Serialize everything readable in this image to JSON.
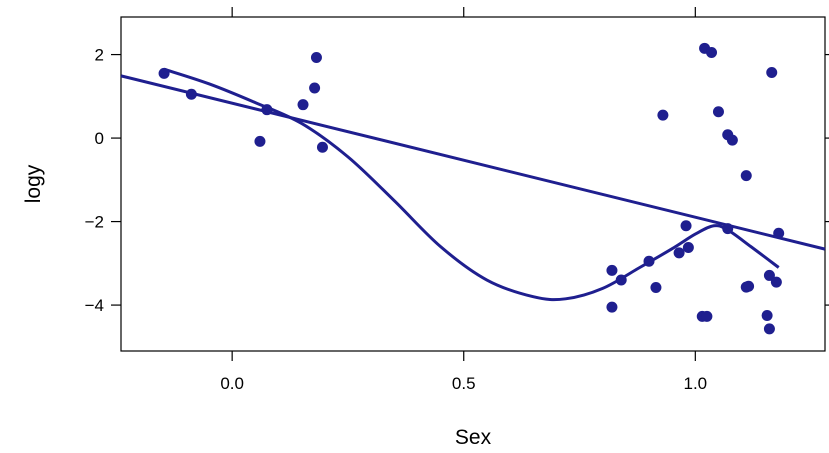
{
  "chart_data": {
    "type": "scatter",
    "title": "",
    "xlabel": "Sex",
    "ylabel": "logy",
    "xlim": [
      -0.24,
      1.28
    ],
    "ylim": [
      -5.1,
      2.9
    ],
    "x_ticks": [
      0.0,
      0.5,
      1.0
    ],
    "x_tick_labels": [
      "0.0",
      "0.5",
      "1.0"
    ],
    "y_ticks": [
      -4,
      -2,
      0,
      2
    ],
    "y_tick_labels": [
      "−4",
      "−2",
      "0",
      "2"
    ],
    "grid": false,
    "color": "#1f1f8f",
    "points": {
      "x": [
        -0.147,
        -0.088,
        0.06,
        0.075,
        0.153,
        0.178,
        0.182,
        0.195,
        0.82,
        0.82,
        0.84,
        0.9,
        0.915,
        0.93,
        0.965,
        0.98,
        0.985,
        1.015,
        1.02,
        1.025,
        1.035,
        1.05,
        1.07,
        1.07,
        1.08,
        1.11,
        1.11,
        1.115,
        1.155,
        1.16,
        1.16,
        1.165,
        1.175,
        1.18
      ],
      "y": [
        1.55,
        1.05,
        -0.08,
        0.68,
        0.8,
        1.2,
        1.93,
        -0.22,
        -3.17,
        -4.05,
        -3.4,
        -2.95,
        -3.58,
        0.55,
        -2.75,
        -2.1,
        -2.62,
        -4.27,
        2.15,
        -4.27,
        2.05,
        0.63,
        -2.17,
        0.08,
        -0.05,
        -0.9,
        -3.57,
        -3.55,
        -4.25,
        -3.29,
        -4.57,
        1.57,
        -3.45,
        -2.28
      ]
    },
    "regression_line": {
      "x": [
        -0.24,
        1.28
      ],
      "y": [
        1.49,
        -2.66
      ]
    },
    "smooth_curve": {
      "x": [
        -0.147,
        -0.05,
        0.05,
        0.15,
        0.25,
        0.35,
        0.45,
        0.55,
        0.65,
        0.72,
        0.8,
        0.88,
        0.95,
        1.0,
        1.04,
        1.07,
        1.12,
        1.18
      ],
      "y": [
        1.65,
        1.3,
        0.85,
        0.35,
        -0.45,
        -1.5,
        -2.6,
        -3.4,
        -3.8,
        -3.85,
        -3.6,
        -3.1,
        -2.65,
        -2.3,
        -2.1,
        -2.2,
        -2.6,
        -3.1
      ]
    }
  }
}
